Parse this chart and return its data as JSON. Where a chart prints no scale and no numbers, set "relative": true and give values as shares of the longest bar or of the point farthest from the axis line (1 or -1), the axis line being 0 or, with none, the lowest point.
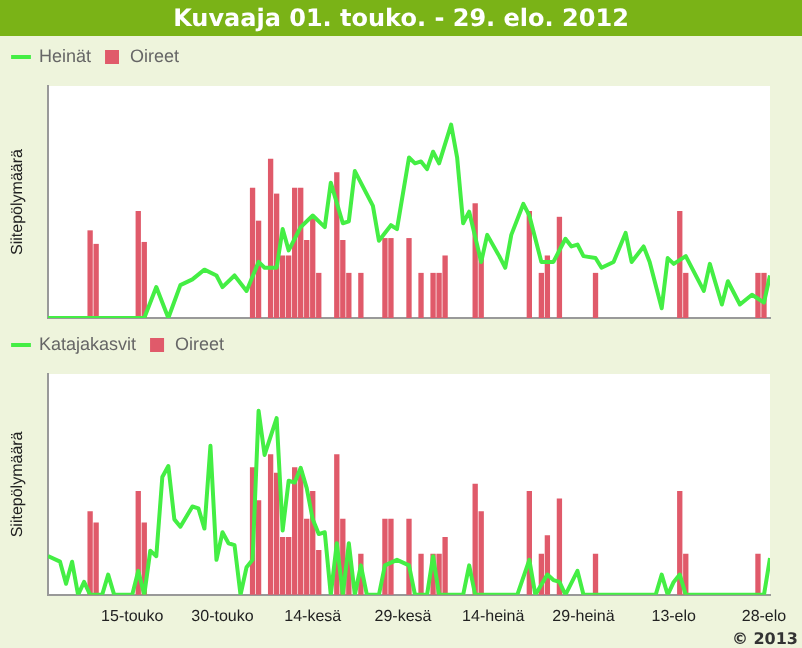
{
  "chart_data": [
    {
      "type": "line",
      "title": "Kuvaaja 01. touko. - 29. elo. 2012",
      "ylabel": "Siitepölymäärä",
      "relative": true,
      "marker": "none",
      "legend": "top left",
      "tick_labels": false,
      "xlim": [
        "2012-05-01",
        "2012-08-29"
      ],
      "xticks": [
        {
          "value": "2012-05-15",
          "label": null
        },
        {
          "value": "2012-05-30",
          "label": null
        },
        {
          "value": "2012-06-14",
          "label": null
        },
        {
          "value": "2012-06-29",
          "label": null
        },
        {
          "value": "2012-07-14",
          "label": null
        },
        {
          "value": "2012-07-29",
          "label": null
        },
        {
          "value": "2012-08-13",
          "label": null
        },
        {
          "value": "2012-08-28",
          "label": null
        }
      ],
      "series": [
        {
          "name": "Heinät",
          "color": "#44ee44",
          "x": [
            "2012-05-01",
            "2012-05-17",
            "2012-05-19",
            "2012-05-21",
            "2012-05-23",
            "2012-05-25",
            "2012-05-27",
            "2012-05-29",
            "2012-05-30",
            "2012-06-01",
            "2012-06-03",
            "2012-06-05",
            "2012-06-06",
            "2012-06-08",
            "2012-06-09",
            "2012-06-10",
            "2012-06-12",
            "2012-06-14",
            "2012-06-16",
            "2012-06-17",
            "2012-06-19",
            "2012-06-20",
            "2012-06-21",
            "2012-06-24",
            "2012-06-25",
            "2012-06-27",
            "2012-06-28",
            "2012-06-30",
            "2012-07-01",
            "2012-07-02",
            "2012-07-03",
            "2012-07-04",
            "2012-07-05",
            "2012-07-07",
            "2012-07-08",
            "2012-07-09",
            "2012-07-10",
            "2012-07-12",
            "2012-07-13",
            "2012-07-15",
            "2012-07-16",
            "2012-07-17",
            "2012-07-19",
            "2012-07-20",
            "2012-07-22",
            "2012-07-24",
            "2012-07-26",
            "2012-07-27",
            "2012-07-28",
            "2012-07-29",
            "2012-07-31",
            "2012-08-01",
            "2012-08-03",
            "2012-08-05",
            "2012-08-06",
            "2012-08-08",
            "2012-08-09",
            "2012-08-11",
            "2012-08-12",
            "2012-08-13",
            "2012-08-15",
            "2012-08-18",
            "2012-08-19",
            "2012-08-21",
            "2012-08-22",
            "2012-08-24",
            "2012-08-26",
            "2012-08-28",
            "2012-08-29"
          ],
          "values": [
            0,
            0,
            0.16,
            0,
            0.17,
            0.2,
            0.25,
            0.22,
            0.16,
            0.22,
            0.14,
            0.29,
            0.26,
            0.26,
            0.46,
            0.35,
            0.47,
            0.53,
            0.47,
            0.7,
            0.49,
            0.5,
            0.76,
            0.58,
            0.4,
            0.48,
            0.46,
            0.83,
            0.8,
            0.81,
            0.77,
            0.86,
            0.8,
            1,
            0.83,
            0.49,
            0.55,
            0.29,
            0.43,
            0.32,
            0.26,
            0.43,
            0.59,
            0.53,
            0.29,
            0.29,
            0.41,
            0.37,
            0.38,
            0.32,
            0.31,
            0.26,
            0.29,
            0.44,
            0.29,
            0.37,
            0.29,
            0.05,
            0.31,
            0.28,
            0.32,
            0.14,
            0.28,
            0.07,
            0.19,
            0.07,
            0.12,
            0.08,
            0.22
          ]
        },
        {
          "name": "Oireet",
          "type": "bar",
          "color": "#e05a6a",
          "x": [
            "2012-05-08",
            "2012-05-09",
            "2012-05-16",
            "2012-05-17",
            "2012-06-04",
            "2012-06-05",
            "2012-06-07",
            "2012-06-08",
            "2012-06-09",
            "2012-06-10",
            "2012-06-11",
            "2012-06-12",
            "2012-06-13",
            "2012-06-14",
            "2012-06-15",
            "2012-06-18",
            "2012-06-19",
            "2012-06-20",
            "2012-06-22",
            "2012-06-26",
            "2012-06-27",
            "2012-06-30",
            "2012-07-02",
            "2012-07-04",
            "2012-07-05",
            "2012-07-06",
            "2012-07-11",
            "2012-07-12",
            "2012-07-20",
            "2012-07-22",
            "2012-07-23",
            "2012-07-25",
            "2012-07-31",
            "2012-08-14",
            "2012-08-15",
            "2012-08-27",
            "2012-08-28"
          ],
          "values": [
            0.45,
            0.38,
            0.55,
            0.39,
            0.67,
            0.5,
            0.82,
            0.64,
            0.32,
            0.32,
            0.67,
            0.67,
            0.4,
            0.52,
            0.23,
            0.75,
            0.4,
            0.23,
            0.23,
            0.41,
            0.41,
            0.41,
            0.23,
            0.23,
            0.23,
            0.32,
            0.59,
            0.32,
            0.55,
            0.23,
            0.32,
            0.52,
            0.23,
            0.55,
            0.23,
            0.23,
            0.23
          ]
        }
      ]
    },
    {
      "type": "line",
      "ylabel": "Siitepölymäärä",
      "relative": true,
      "marker": "none",
      "legend": "top left",
      "tick_labels": "x",
      "annotations": [
        "© 2013"
      ],
      "xlim": [
        "2012-05-01",
        "2012-08-29"
      ],
      "xticks": [
        {
          "value": "2012-05-15",
          "label": "15-touko"
        },
        {
          "value": "2012-05-30",
          "label": "30-touko"
        },
        {
          "value": "2012-06-14",
          "label": "14-kesä"
        },
        {
          "value": "2012-06-29",
          "label": "29-kesä"
        },
        {
          "value": "2012-07-14",
          "label": "14-heinä"
        },
        {
          "value": "2012-07-29",
          "label": "29-heinä"
        },
        {
          "value": "2012-08-13",
          "label": "13-elo"
        },
        {
          "value": "2012-08-28",
          "label": "28-elo"
        }
      ],
      "series": [
        {
          "name": "Katajakasvit",
          "color": "#44ee44",
          "x": [
            "2012-05-01",
            "2012-05-03",
            "2012-05-04",
            "2012-05-05",
            "2012-05-06",
            "2012-05-07",
            "2012-05-08",
            "2012-05-10",
            "2012-05-11",
            "2012-05-12",
            "2012-05-15",
            "2012-05-16",
            "2012-05-17",
            "2012-05-18",
            "2012-05-19",
            "2012-05-20",
            "2012-05-21",
            "2012-05-22",
            "2012-05-23",
            "2012-05-25",
            "2012-05-26",
            "2012-05-27",
            "2012-05-28",
            "2012-05-29",
            "2012-05-30",
            "2012-05-31",
            "2012-06-01",
            "2012-06-02",
            "2012-06-03",
            "2012-06-04",
            "2012-06-05",
            "2012-06-06",
            "2012-06-08",
            "2012-06-09",
            "2012-06-10",
            "2012-06-11",
            "2012-06-12",
            "2012-06-13",
            "2012-06-14",
            "2012-06-15",
            "2012-06-16",
            "2012-06-17",
            "2012-06-18",
            "2012-06-19",
            "2012-06-20",
            "2012-06-21",
            "2012-06-22",
            "2012-06-23",
            "2012-06-25",
            "2012-06-26",
            "2012-06-28",
            "2012-06-30",
            "2012-07-01",
            "2012-07-03",
            "2012-07-04",
            "2012-07-05",
            "2012-07-09",
            "2012-07-10",
            "2012-07-11",
            "2012-07-18",
            "2012-07-20",
            "2012-07-21",
            "2012-07-23",
            "2012-07-24",
            "2012-07-25",
            "2012-07-26",
            "2012-07-28",
            "2012-07-29",
            "2012-08-10",
            "2012-08-11",
            "2012-08-12",
            "2012-08-13",
            "2012-08-14",
            "2012-08-15",
            "2012-08-28",
            "2012-08-29"
          ],
          "values": [
            0.21,
            0.18,
            0.06,
            0.18,
            0,
            0.07,
            0,
            0,
            0.11,
            0,
            0,
            0.13,
            0,
            0.24,
            0.21,
            0.64,
            0.7,
            0.41,
            0.37,
            0.48,
            0.47,
            0.36,
            0.81,
            0.19,
            0.34,
            0.28,
            0.27,
            0,
            0.15,
            0.19,
            1,
            0.76,
            0.96,
            0.35,
            0.62,
            0.61,
            0.69,
            0.58,
            0.41,
            0.33,
            0.34,
            0,
            0.28,
            0,
            0.28,
            0,
            0.16,
            0,
            0,
            0.16,
            0.19,
            0.16,
            0,
            0,
            0.21,
            0,
            0,
            0.16,
            0,
            0,
            0.19,
            0,
            0.11,
            0.08,
            0.07,
            0,
            0.13,
            0,
            0,
            0.11,
            0,
            0.07,
            0.11,
            0,
            0,
            0.2
          ]
        },
        {
          "name": "Oireet",
          "type": "bar",
          "color": "#e05a6a",
          "x": [
            "2012-05-08",
            "2012-05-09",
            "2012-05-16",
            "2012-05-17",
            "2012-06-04",
            "2012-06-05",
            "2012-06-07",
            "2012-06-08",
            "2012-06-09",
            "2012-06-10",
            "2012-06-11",
            "2012-06-12",
            "2012-06-13",
            "2012-06-14",
            "2012-06-15",
            "2012-06-18",
            "2012-06-19",
            "2012-06-20",
            "2012-06-22",
            "2012-06-26",
            "2012-06-27",
            "2012-06-30",
            "2012-07-02",
            "2012-07-04",
            "2012-07-05",
            "2012-07-06",
            "2012-07-11",
            "2012-07-12",
            "2012-07-20",
            "2012-07-22",
            "2012-07-23",
            "2012-07-25",
            "2012-07-31",
            "2012-08-14",
            "2012-08-15",
            "2012-08-27"
          ],
          "values": [
            0.45,
            0.39,
            0.56,
            0.39,
            0.69,
            0.51,
            0.76,
            0.66,
            0.31,
            0.31,
            0.69,
            0.67,
            0.41,
            0.56,
            0.24,
            0.76,
            0.41,
            0.22,
            0.22,
            0.41,
            0.41,
            0.41,
            0.22,
            0.22,
            0.22,
            0.31,
            0.6,
            0.45,
            0.56,
            0.22,
            0.32,
            0.52,
            0.22,
            0.56,
            0.22,
            0.22
          ]
        }
      ]
    }
  ]
}
